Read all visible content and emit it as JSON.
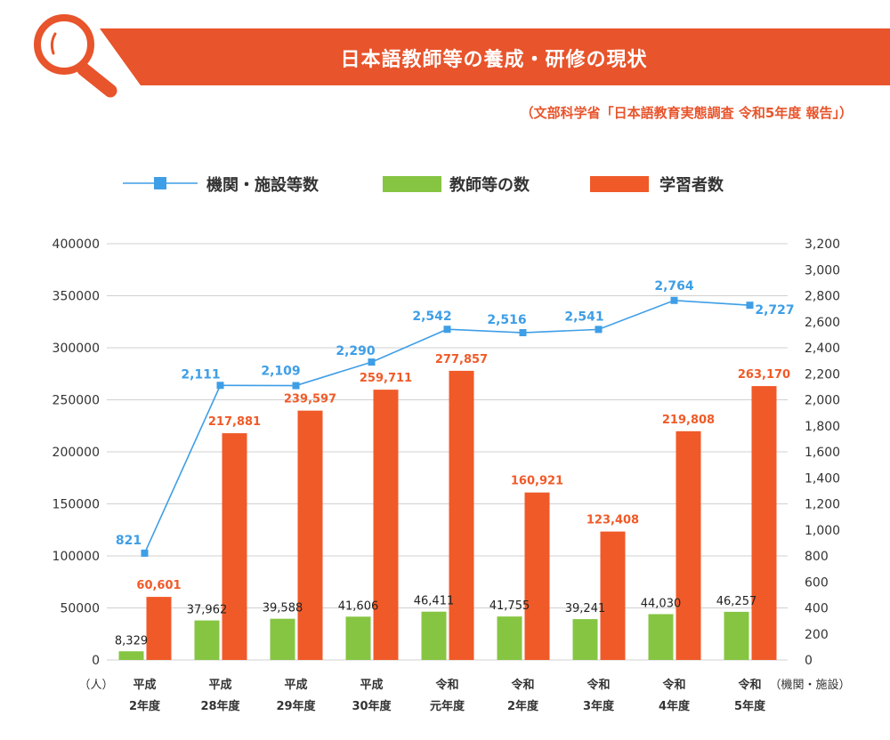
{
  "header": {
    "title": "日本語教師等の養成・研修の現状",
    "source": "（文部科学省「日本語教育実態調査 令和5年度 報告」）"
  },
  "colors": {
    "banner": "#e8542b",
    "institutions": "#3e9ee6",
    "teachers": "#86c542",
    "learners": "#f05a28",
    "axis_text": "#333333",
    "grid": "#d0d0d0"
  },
  "legend": [
    {
      "label": "機関・施設等数",
      "marker": "line-square-marker"
    },
    {
      "label": "教師等の数",
      "marker": "bar-marker"
    },
    {
      "label": "学習者数",
      "marker": "bar-marker"
    }
  ],
  "chart_data": {
    "type": "bar",
    "categories": [
      [
        "平成",
        "2年度"
      ],
      [
        "平成",
        "28年度"
      ],
      [
        "平成",
        "29年度"
      ],
      [
        "平成",
        "30年度"
      ],
      [
        "令和",
        "元年度"
      ],
      [
        "令和",
        "2年度"
      ],
      [
        "令和",
        "3年度"
      ],
      [
        "令和",
        "4年度"
      ],
      [
        "令和",
        "5年度"
      ]
    ],
    "left_axis": {
      "unit_label": "（人）",
      "ylim": [
        0,
        400000
      ],
      "ticks": [
        "0",
        "50000",
        "100000",
        "150000",
        "200000",
        "250000",
        "300000",
        "350000",
        "400000"
      ]
    },
    "right_axis": {
      "unit_label": "（機関・施設）",
      "ylim": [
        0,
        3200
      ],
      "ticks": [
        "0",
        "200",
        "400",
        "600",
        "800",
        "1,000",
        "1,200",
        "1,400",
        "1,600",
        "1,800",
        "2,000",
        "2,200",
        "2,400",
        "2,600",
        "2,800",
        "3,000",
        "3,200"
      ]
    },
    "grid": true,
    "legend_position": "top",
    "series": [
      {
        "name": "教師等の数",
        "type": "bar",
        "axis": "left",
        "values": [
          8329,
          37962,
          39588,
          41606,
          46411,
          41755,
          39241,
          44030,
          46257
        ],
        "labels": [
          "8,329",
          "37,962",
          "39,588",
          "41,606",
          "46,411",
          "41,755",
          "39,241",
          "44,030",
          "46,257"
        ]
      },
      {
        "name": "学習者数",
        "type": "bar",
        "axis": "left",
        "values": [
          60601,
          217881,
          239597,
          259711,
          277857,
          160921,
          123408,
          219808,
          263170
        ],
        "labels": [
          "60,601",
          "217,881",
          "239,597",
          "259,711",
          "277,857",
          "160,921",
          "123,408",
          "219,808",
          "263,170"
        ]
      },
      {
        "name": "機関・施設等数",
        "type": "line",
        "axis": "right",
        "values": [
          821,
          2111,
          2109,
          2290,
          2542,
          2516,
          2541,
          2764,
          2727
        ],
        "labels": [
          "821",
          "2,111",
          "2,109",
          "2,290",
          "2,542",
          "2,516",
          "2,541",
          "2,764",
          "2,727"
        ]
      }
    ]
  }
}
